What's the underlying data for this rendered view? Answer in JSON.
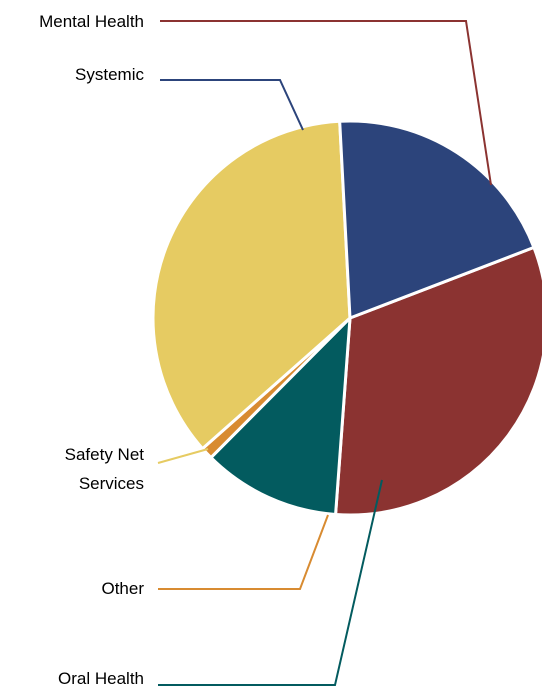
{
  "chart_data": {
    "type": "pie",
    "title": "",
    "unit": "%",
    "start_angle_deg": 69,
    "direction": "clockwise",
    "slices": [
      {
        "label": "Mental Health",
        "value": 32,
        "color": "#8b3331"
      },
      {
        "label": "Oral Health",
        "value": 11.3,
        "color": "#035b5f"
      },
      {
        "label": "Other",
        "value": 1,
        "color": "#d88b31"
      },
      {
        "label": "Safety Net Services",
        "value": 35.7,
        "color": "#e6cb62"
      },
      {
        "label": "Systemic",
        "value": 20,
        "color": "#2c447b"
      }
    ],
    "labels": {
      "mental_health": "Mental Health",
      "oral_health": "Oral Health",
      "other": "Other",
      "safety_net_line1": "Safety Net",
      "safety_net_line2": "Services",
      "systemic": "Systemic"
    },
    "legend": "leader-line callouts, left side"
  }
}
